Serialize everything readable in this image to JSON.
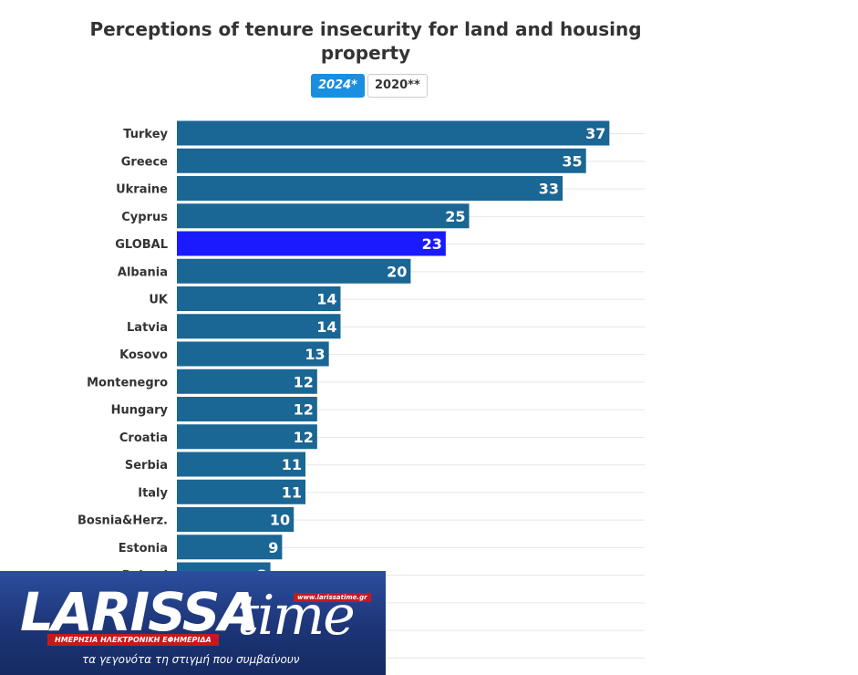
{
  "chart_data": {
    "type": "bar",
    "orientation": "horizontal",
    "title": "Perceptions of tenure insecurity for land and housing property",
    "categories": [
      "Turkey",
      "Greece",
      "Ukraine",
      "Cyprus",
      "GLOBAL",
      "Albania",
      "UK",
      "Latvia",
      "Kosovo",
      "Montenegro",
      "Hungary",
      "Croatia",
      "Serbia",
      "Italy",
      "Bosnia&Herz.",
      "Estonia",
      "Poland",
      "",
      "",
      ""
    ],
    "values": [
      37,
      35,
      33,
      25,
      23,
      20,
      14,
      14,
      13,
      12,
      12,
      12,
      11,
      11,
      10,
      9,
      8,
      null,
      null,
      null
    ],
    "value_labels": [
      "37",
      "35",
      "33",
      "25",
      "23",
      "20",
      "14",
      "14",
      "13",
      "12",
      "12",
      "12",
      "11",
      "11",
      "10",
      "9",
      "8",
      "",
      "",
      ""
    ],
    "xlim": [
      0,
      40
    ],
    "grid": true,
    "highlight_category": "GLOBAL",
    "colors": {
      "bar": "#1a6694",
      "highlight": "#1a1aff",
      "grid": "#e6e6e6"
    }
  },
  "tabs": [
    {
      "label": "2024*",
      "active": true
    },
    {
      "label": "2020**",
      "active": false
    }
  ],
  "overlay_logo": {
    "brand_left": "LARISSA",
    "brand_right": "time",
    "url": "www.larissatime.gr",
    "tagline": "ΗΜΕΡΗΣΙΑ ΗΛΕΚΤΡΟΝΙΚΗ ΕΦΗΜΕΡΙΔΑ",
    "slogan": "τα γεγονότα τη στιγμή που συμβαίνουν"
  }
}
